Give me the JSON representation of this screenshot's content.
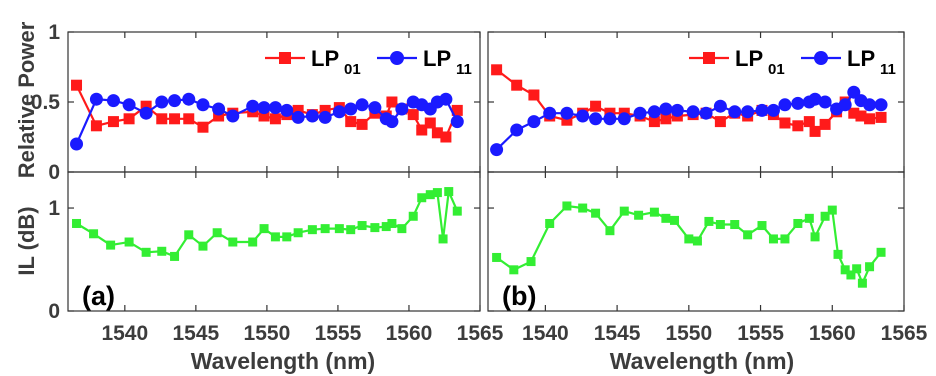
{
  "chart_data": {
    "type": "line",
    "shared": {
      "xlabel": "Wavelength (nm)",
      "xlim": [
        1536,
        1565
      ],
      "x_ticks": [
        "1540",
        "1545",
        "1550",
        "1555",
        "1560",
        "1565"
      ],
      "top_ylabel": "Relative Power",
      "top_ylim": [
        0,
        1
      ],
      "top_y_ticks": [
        "0",
        "0.5",
        "1"
      ],
      "bottom_ylabel": "IL (dB)",
      "bottom_ylim": [
        0,
        1.35
      ],
      "bottom_y_ticks": [
        "0",
        "1"
      ],
      "legend": [
        {
          "label": "LP",
          "sub": "01",
          "color": "#ff1a1a",
          "marker": "square"
        },
        {
          "label": "LP",
          "sub": "11",
          "color": "#1a1aff",
          "marker": "circle"
        }
      ],
      "il_color": "#33ee33"
    },
    "panels": [
      {
        "label": "(a)",
        "series": [
          {
            "name": "LP01",
            "color": "#ff1a1a",
            "marker": "square",
            "x": [
              1536.6,
              1538.0,
              1539.2,
              1540.3,
              1541.5,
              1542.6,
              1543.5,
              1544.5,
              1545.5,
              1546.6,
              1547.6,
              1549.0,
              1549.8,
              1550.6,
              1551.4,
              1552.2,
              1553.2,
              1554.1,
              1555.1,
              1555.9,
              1556.7,
              1557.6,
              1558.4,
              1558.8,
              1559.5,
              1560.3,
              1560.9,
              1561.5,
              1562.0,
              1562.6,
              1563.4
            ],
            "y": [
              0.62,
              0.33,
              0.36,
              0.38,
              0.47,
              0.38,
              0.38,
              0.38,
              0.32,
              0.4,
              0.42,
              0.43,
              0.4,
              0.38,
              0.41,
              0.44,
              0.41,
              0.44,
              0.46,
              0.36,
              0.34,
              0.42,
              0.4,
              0.5,
              0.45,
              0.41,
              0.3,
              0.35,
              0.28,
              0.25,
              0.44
            ]
          },
          {
            "name": "LP11",
            "color": "#1a1aff",
            "marker": "circle",
            "x": [
              1536.6,
              1538.0,
              1539.2,
              1540.3,
              1541.5,
              1542.6,
              1543.5,
              1544.5,
              1545.5,
              1546.6,
              1547.6,
              1549.0,
              1549.8,
              1550.6,
              1551.4,
              1552.2,
              1553.2,
              1554.1,
              1555.1,
              1555.9,
              1556.7,
              1557.6,
              1558.4,
              1558.8,
              1559.5,
              1560.3,
              1560.9,
              1561.5,
              1562.0,
              1562.6,
              1563.4
            ],
            "y": [
              0.2,
              0.52,
              0.51,
              0.48,
              0.42,
              0.5,
              0.51,
              0.52,
              0.48,
              0.45,
              0.4,
              0.47,
              0.46,
              0.46,
              0.44,
              0.39,
              0.4,
              0.39,
              0.43,
              0.45,
              0.48,
              0.46,
              0.38,
              0.36,
              0.45,
              0.5,
              0.48,
              0.45,
              0.5,
              0.52,
              0.36
            ]
          },
          {
            "name": "IL",
            "color": "#33ee33",
            "marker": "square",
            "axis": "bottom",
            "x": [
              1536.6,
              1537.8,
              1539.0,
              1540.3,
              1541.5,
              1542.6,
              1543.5,
              1544.5,
              1545.5,
              1546.5,
              1547.6,
              1549.0,
              1549.8,
              1550.6,
              1551.4,
              1552.2,
              1553.2,
              1554.1,
              1555.1,
              1555.9,
              1556.7,
              1557.6,
              1558.4,
              1558.8,
              1559.5,
              1560.3,
              1560.9,
              1561.5,
              1562.0,
              1562.4,
              1562.8,
              1563.4
            ],
            "y": [
              0.85,
              0.75,
              0.64,
              0.67,
              0.57,
              0.58,
              0.53,
              0.74,
              0.63,
              0.76,
              0.67,
              0.67,
              0.8,
              0.72,
              0.72,
              0.76,
              0.79,
              0.8,
              0.8,
              0.79,
              0.83,
              0.81,
              0.82,
              0.85,
              0.8,
              0.92,
              1.1,
              1.13,
              1.15,
              0.7,
              1.16,
              0.97
            ]
          }
        ]
      },
      {
        "label": "(b)",
        "series": [
          {
            "name": "LP01",
            "color": "#ff1a1a",
            "marker": "square",
            "x": [
              1536.6,
              1538.0,
              1539.2,
              1540.3,
              1541.5,
              1542.6,
              1543.5,
              1544.5,
              1545.5,
              1546.6,
              1547.6,
              1548.4,
              1549.2,
              1550.3,
              1551.2,
              1552.2,
              1553.2,
              1554.1,
              1555.1,
              1555.9,
              1556.7,
              1557.6,
              1558.4,
              1558.8,
              1559.5,
              1560.3,
              1560.9,
              1561.5,
              1562.0,
              1562.6,
              1563.4
            ],
            "y": [
              0.73,
              0.62,
              0.55,
              0.4,
              0.37,
              0.42,
              0.47,
              0.42,
              0.42,
              0.4,
              0.36,
              0.38,
              0.4,
              0.41,
              0.42,
              0.36,
              0.42,
              0.4,
              0.44,
              0.41,
              0.35,
              0.33,
              0.36,
              0.29,
              0.34,
              0.43,
              0.5,
              0.42,
              0.4,
              0.38,
              0.39
            ]
          },
          {
            "name": "LP11",
            "color": "#1a1aff",
            "marker": "circle",
            "x": [
              1536.6,
              1538.0,
              1539.2,
              1540.3,
              1541.5,
              1542.6,
              1543.5,
              1544.5,
              1545.5,
              1546.6,
              1547.6,
              1548.4,
              1549.2,
              1550.3,
              1551.2,
              1552.2,
              1553.2,
              1554.1,
              1555.1,
              1555.9,
              1556.7,
              1557.6,
              1558.4,
              1558.8,
              1559.5,
              1560.3,
              1560.9,
              1561.5,
              1562.0,
              1562.6,
              1563.4
            ],
            "y": [
              0.16,
              0.3,
              0.36,
              0.42,
              0.42,
              0.4,
              0.38,
              0.38,
              0.38,
              0.42,
              0.43,
              0.45,
              0.44,
              0.43,
              0.42,
              0.47,
              0.43,
              0.43,
              0.44,
              0.44,
              0.48,
              0.49,
              0.5,
              0.52,
              0.5,
              0.45,
              0.48,
              0.57,
              0.51,
              0.48,
              0.48
            ]
          },
          {
            "name": "IL",
            "color": "#33ee33",
            "marker": "square",
            "axis": "bottom",
            "x": [
              1536.6,
              1537.8,
              1539.0,
              1540.3,
              1541.5,
              1542.6,
              1543.5,
              1544.5,
              1545.5,
              1546.5,
              1547.6,
              1548.4,
              1549.0,
              1550.0,
              1550.6,
              1551.4,
              1552.2,
              1553.2,
              1554.1,
              1555.1,
              1555.9,
              1556.7,
              1557.6,
              1558.4,
              1558.8,
              1559.5,
              1560.0,
              1560.4,
              1560.9,
              1561.3,
              1561.7,
              1562.1,
              1562.6,
              1563.4
            ],
            "y": [
              0.52,
              0.4,
              0.48,
              0.85,
              1.02,
              1.0,
              0.95,
              0.78,
              0.97,
              0.93,
              0.96,
              0.9,
              0.88,
              0.7,
              0.68,
              0.87,
              0.84,
              0.84,
              0.74,
              0.83,
              0.7,
              0.7,
              0.85,
              0.9,
              0.72,
              0.92,
              0.98,
              0.55,
              0.4,
              0.35,
              0.41,
              0.27,
              0.43,
              0.57
            ]
          }
        ]
      }
    ]
  }
}
